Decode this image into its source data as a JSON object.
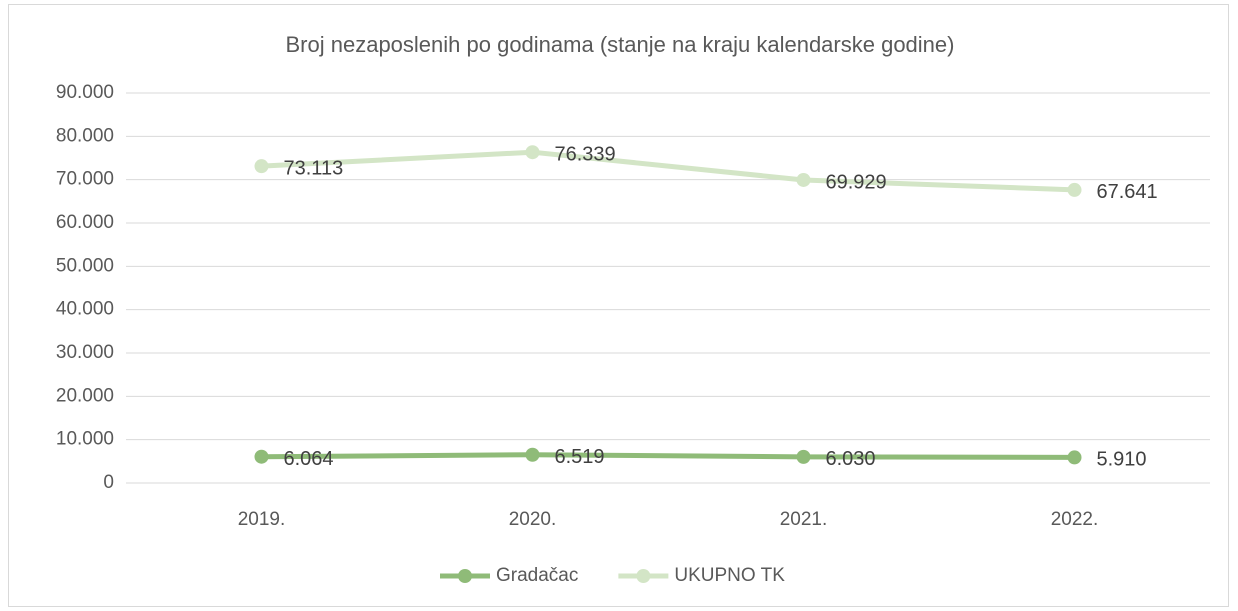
{
  "chart_data": {
    "type": "line",
    "title": "Broj nezaposlenih po godinama (stanje na kraju kalendarske godine)",
    "categories": [
      "2019.",
      "2020.",
      "2021.",
      "2022."
    ],
    "series": [
      {
        "name": "Gradačac",
        "color": "#8fbb78",
        "values": [
          6064,
          6519,
          6030,
          5910
        ],
        "value_labels": [
          "6.064",
          "6.519",
          "6.030",
          "5.910"
        ]
      },
      {
        "name": "UKUPNO TK",
        "color": "#d3e5c6",
        "values": [
          73113,
          76339,
          69929,
          67641
        ],
        "value_labels": [
          "73.113",
          "76.339",
          "69.929",
          "67.641"
        ]
      }
    ],
    "ylim": [
      0,
      90000
    ],
    "yticks": [
      0,
      {
        "value": 10000,
        "label": "10.000"
      },
      {
        "value": 20000,
        "label": "20.000"
      },
      {
        "value": 30000,
        "label": "30.000"
      },
      {
        "value": 40000,
        "label": "40.000"
      },
      {
        "value": 50000,
        "label": "50.000"
      },
      {
        "value": 60000,
        "label": "60.000"
      },
      {
        "value": 70000,
        "label": "70.000"
      },
      {
        "value": 80000,
        "label": "80.000"
      },
      {
        "value": 90000,
        "label": "90.000"
      }
    ],
    "grid": true,
    "legend": "bottom"
  }
}
